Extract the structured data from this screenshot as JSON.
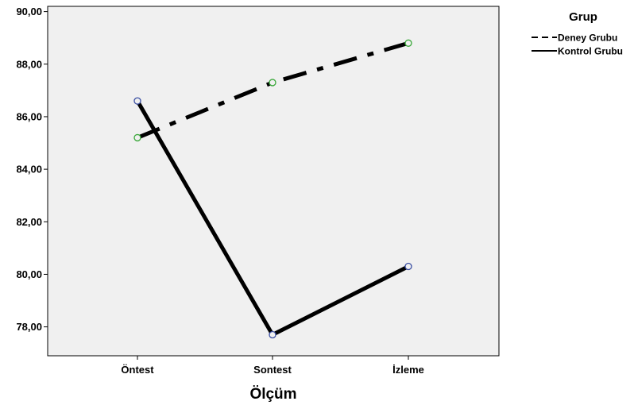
{
  "chart_data": {
    "type": "line",
    "title": "",
    "xlabel": "Ölçüm",
    "ylabel": "",
    "categories": [
      "Öntest",
      "Sontest",
      "İzleme"
    ],
    "yticks": [
      "78,00",
      "80,00",
      "82,00",
      "84,00",
      "86,00",
      "88,00",
      "90,00"
    ],
    "ylim": [
      76.9,
      90.2
    ],
    "grid": false,
    "legend": {
      "title": "Grup",
      "placement": "right"
    },
    "series": [
      {
        "name": "Deney Grubu",
        "values": [
          85.2,
          87.3,
          88.8
        ],
        "marker_color": "#3aa83a",
        "line_style": "dash-dot"
      },
      {
        "name": "Kontrol Grubu",
        "values": [
          86.6,
          77.7,
          80.3
        ],
        "marker_color": "#3b4fa3",
        "line_style": "solid"
      }
    ],
    "colors": {
      "line": "#000000",
      "plot_background": "#f0f0f0"
    }
  }
}
